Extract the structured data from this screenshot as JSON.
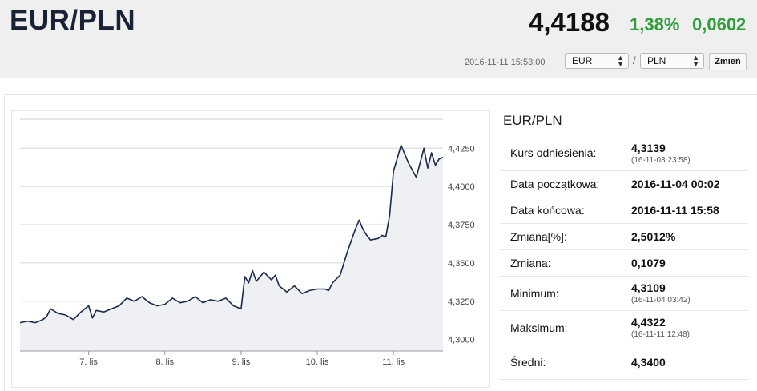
{
  "header": {
    "pair": "EUR/PLN",
    "price": "4,4188",
    "change_pct": "1,38%",
    "change_abs": "0,0602",
    "datetime": "2016-11-11 15:53:00",
    "base_currency": "EUR",
    "separator": "/",
    "quote_currency": "PLN",
    "change_button": "Zmień",
    "colors": {
      "positive": "#2f9e3a",
      "title": "#1a2238"
    }
  },
  "info": {
    "title": "EUR/PLN",
    "rows": [
      {
        "label": "Kurs odniesienia:",
        "value": "4,3139",
        "sub": "(16-11-03 23:58)"
      },
      {
        "label": "Data początkowa:",
        "value": "2016-11-04 00:02",
        "sub": ""
      },
      {
        "label": "Data końcowa:",
        "value": "2016-11-11 15:58",
        "sub": ""
      },
      {
        "label": "Zmiana[%]:",
        "value": "2,5012%",
        "sub": ""
      },
      {
        "label": "Zmiana:",
        "value": "0,1079",
        "sub": ""
      },
      {
        "label": "Minimum:",
        "value": "4,3109",
        "sub": "(16-11-04 03:42)"
      },
      {
        "label": "Maksimum:",
        "value": "4,4322",
        "sub": "(16-11-11 12:48)"
      },
      {
        "label": "Średni:",
        "value": "4,3400",
        "sub": ""
      }
    ]
  },
  "chart_data": {
    "type": "area",
    "x_tick_labels": [
      "7. lis",
      "8. lis",
      "9. lis",
      "10. lis",
      "11. lis"
    ],
    "y_tick_labels": [
      "4,4250",
      "4,4000",
      "4,3750",
      "4,3500",
      "4,3250",
      "4,3000"
    ],
    "y_ticks": [
      4.425,
      4.4,
      4.375,
      4.35,
      4.325,
      4.3
    ],
    "ylim": [
      4.2925,
      4.445
    ],
    "xlim": [
      0,
      5.55
    ],
    "x_tick_positions": [
      0.9,
      1.9,
      2.9,
      3.9,
      4.9
    ],
    "grid": true,
    "line_color": "#1b2a4a",
    "fill_color": "#eef0f4",
    "series": [
      {
        "x": [
          0,
          0.1,
          0.2,
          0.3,
          0.35,
          0.4,
          0.5,
          0.6,
          0.7,
          0.8,
          0.9,
          0.95,
          1.0,
          1.1,
          1.2,
          1.3,
          1.4,
          1.5,
          1.6,
          1.7,
          1.8,
          1.9,
          2.0,
          2.1,
          2.2,
          2.3,
          2.4,
          2.5,
          2.6,
          2.7,
          2.8,
          2.9,
          2.95,
          3.0,
          3.05,
          3.1,
          3.2,
          3.3,
          3.35,
          3.4,
          3.5,
          3.6,
          3.7,
          3.8,
          3.9,
          4.0,
          4.05,
          4.1,
          4.2,
          4.3,
          4.4,
          4.45,
          4.5,
          4.55,
          4.6,
          4.7,
          4.75,
          4.8,
          4.85,
          4.9,
          5.0,
          5.1,
          5.2,
          5.3,
          5.35,
          5.4,
          5.45,
          5.5,
          5.55
        ],
        "y": [
          4.311,
          4.312,
          4.311,
          4.313,
          4.315,
          4.32,
          4.317,
          4.316,
          4.313,
          4.318,
          4.322,
          4.314,
          4.319,
          4.318,
          4.32,
          4.322,
          4.327,
          4.325,
          4.328,
          4.324,
          4.322,
          4.323,
          4.327,
          4.324,
          4.325,
          4.328,
          4.324,
          4.326,
          4.325,
          4.327,
          4.322,
          4.32,
          4.341,
          4.337,
          4.345,
          4.338,
          4.344,
          4.339,
          4.342,
          4.335,
          4.331,
          4.335,
          4.33,
          4.332,
          4.333,
          4.333,
          4.332,
          4.337,
          4.342,
          4.358,
          4.372,
          4.378,
          4.372,
          4.368,
          4.365,
          4.366,
          4.368,
          4.367,
          4.381,
          4.41,
          4.427,
          4.415,
          4.406,
          4.425,
          4.412,
          4.422,
          4.414,
          4.418,
          4.419
        ]
      }
    ]
  }
}
